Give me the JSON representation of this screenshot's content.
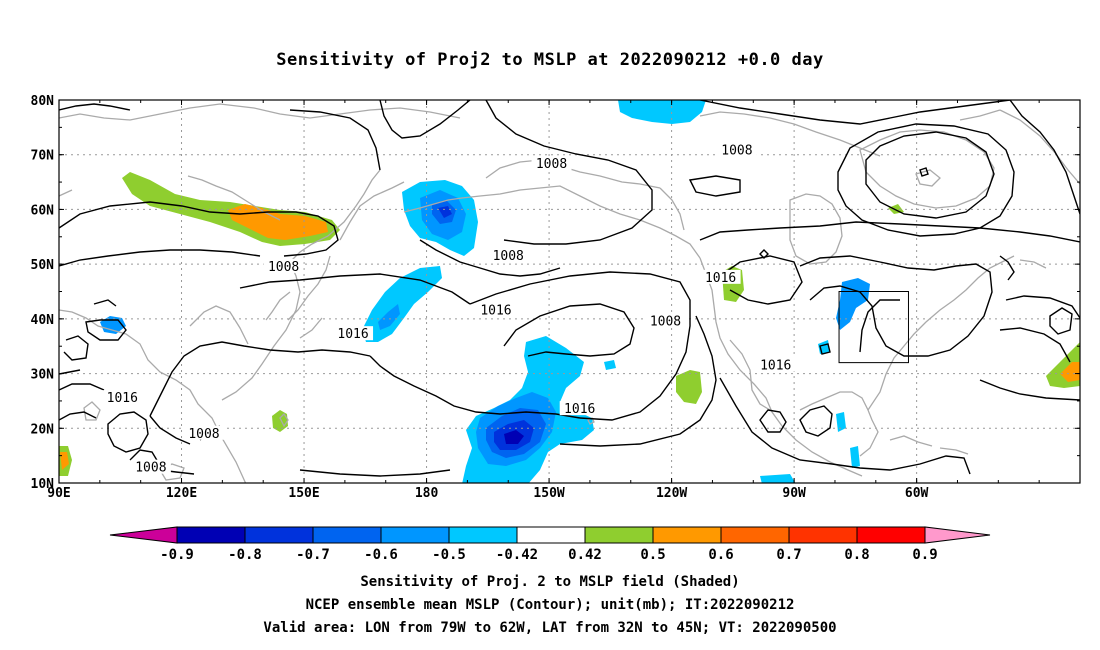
{
  "title": "Sensitivity of Proj2 to MSLP at 2022090212 +0.0 day",
  "map": {
    "lat_labels": [
      "80N",
      "70N",
      "60N",
      "50N",
      "40N",
      "30N",
      "20N",
      "10N"
    ],
    "lon_labels": [
      "90E",
      "120E",
      "150E",
      "180",
      "150W",
      "120W",
      "90W",
      "60W"
    ],
    "lon_range": [
      90,
      340
    ],
    "lat_range": [
      10,
      80
    ],
    "contour_labels": [
      {
        "text": "1008",
        "lon": 210.6,
        "lat": 68.3
      },
      {
        "text": "1008",
        "lon": 256,
        "lat": 70.8
      },
      {
        "text": "1008",
        "lon": 200,
        "lat": 51.5
      },
      {
        "text": "1008",
        "lon": 145,
        "lat": 49.5
      },
      {
        "text": "1008",
        "lon": 238.5,
        "lat": 39.5
      },
      {
        "text": "1008",
        "lon": 125.5,
        "lat": 19
      },
      {
        "text": "1008",
        "lon": 112.5,
        "lat": 12.8
      },
      {
        "text": "1016",
        "lon": 252,
        "lat": 47.5
      },
      {
        "text": "1016",
        "lon": 197,
        "lat": 41.5
      },
      {
        "text": "1016",
        "lon": 162,
        "lat": 37.2
      },
      {
        "text": "1016",
        "lon": 105.5,
        "lat": 25.5
      },
      {
        "text": "1016",
        "lon": 217.5,
        "lat": 23.5
      },
      {
        "text": "1016",
        "lon": 265.5,
        "lat": 31.5
      }
    ],
    "valid_box": {
      "lon": [
        281,
        298
      ],
      "lat": [
        32,
        45
      ]
    },
    "colors": {
      "contour": "#000000",
      "coastline": "#aaaaaa",
      "grid": "#999999"
    }
  },
  "colorbar": {
    "labels": [
      "-0.9",
      "-0.8",
      "-0.7",
      "-0.6",
      "-0.5",
      "-0.42",
      "0.42",
      "0.5",
      "0.6",
      "0.7",
      "0.8",
      "0.9"
    ],
    "colors": [
      "#cc0099",
      "#0000b4",
      "#0032dc",
      "#0064f0",
      "#0096ff",
      "#00c8ff",
      "#ffffff",
      "#8fce2f",
      "#ff9900",
      "#ff6600",
      "#ff3300",
      "#ff0000",
      "#ff99cc"
    ]
  },
  "footer": {
    "line1": "Sensitivity of Proj. 2 to MSLP field (Shaded)",
    "line2": "NCEP ensemble mean MSLP (Contour); unit(mb); IT:2022090212",
    "line3": "Valid area: LON from 79W to 62W, LAT from 32N to 45N; VT: 2022090500"
  }
}
